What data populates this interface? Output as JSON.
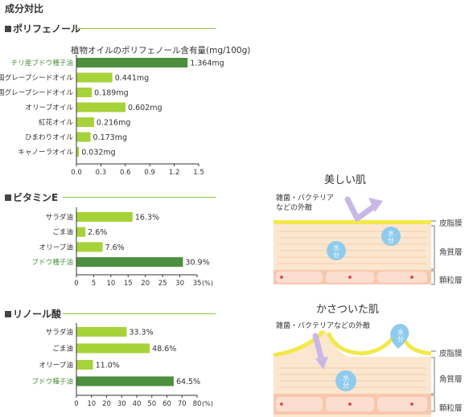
{
  "page_title": "成分対比",
  "sections": [
    {
      "heading": "ポリフェノール",
      "chart_title": "植物オイルのポリフェノール含有量(mg/100g)"
    },
    {
      "heading": "ビタミンE"
    },
    {
      "heading": "リノール酸"
    }
  ],
  "chart_data": [
    {
      "type": "bar",
      "orientation": "horizontal",
      "title": "植物オイルのポリフェノール含有量(mg/100g)",
      "categories": [
        "チリ産ブドウ種子油",
        "A国グレープシードオイル",
        "B国グレープシードオイル",
        "オリーブオイル",
        "紅花オイル",
        "ひまわりオイル",
        "キャノーラオイル"
      ],
      "values": [
        1.364,
        0.441,
        0.189,
        0.602,
        0.216,
        0.173,
        0.032
      ],
      "value_labels": [
        "1.364mg",
        "0.441mg",
        "0.189mg",
        "0.602mg",
        "0.216mg",
        "0.173mg",
        "0.032mg"
      ],
      "highlight_index": 0,
      "xlim": [
        0,
        1.5
      ],
      "ticks": [
        "0.0",
        "0.3",
        "0.6",
        "0.9",
        "1.2",
        "1.5"
      ],
      "tick_values": [
        0,
        0.3,
        0.6,
        0.9,
        1.2,
        1.5
      ],
      "unit": ""
    },
    {
      "type": "bar",
      "orientation": "horizontal",
      "title": "ビタミンE",
      "categories": [
        "サラダ油",
        "ごま油",
        "オリーブ油",
        "ブドウ種子油"
      ],
      "values": [
        16.3,
        2.6,
        7.6,
        30.9
      ],
      "value_labels": [
        "16.3%",
        "2.6%",
        "7.6%",
        "30.9%"
      ],
      "highlight_index": 3,
      "xlim": [
        0,
        35
      ],
      "ticks": [
        "0",
        "5",
        "10",
        "15",
        "20",
        "25",
        "30",
        "35"
      ],
      "tick_values": [
        0,
        5,
        10,
        15,
        20,
        25,
        30,
        35
      ],
      "unit": "(%)"
    },
    {
      "type": "bar",
      "orientation": "horizontal",
      "title": "リノール酸",
      "categories": [
        "サラダ油",
        "ごま油",
        "オリーブ油",
        "ブドウ種子油"
      ],
      "values": [
        33.3,
        48.6,
        11.0,
        64.5
      ],
      "value_labels": [
        "33.3%",
        "48.6%",
        "11.0%",
        "64.5%"
      ],
      "highlight_index": 3,
      "xlim": [
        0,
        80
      ],
      "ticks": [
        "0",
        "10",
        "20",
        "30",
        "40",
        "50",
        "60",
        "70",
        "80"
      ],
      "tick_values": [
        0,
        10,
        20,
        30,
        40,
        50,
        60,
        70,
        80
      ],
      "unit": "(%)"
    }
  ],
  "colors": {
    "bar": "#a7d23a",
    "bar_highlight": "#4d8f3e",
    "accent_line": "#8dc63f",
    "sebum": "#f2e84a",
    "water": "#8fcbec",
    "arrow": "#c9b8e6"
  },
  "diagrams": {
    "healthy": {
      "title": "美しい肌",
      "threat": [
        "雑菌・バクテリア",
        "などの外敵"
      ],
      "water_label": "水分",
      "layers": [
        "皮脂膜",
        "角質層",
        "顆粒層"
      ]
    },
    "dry": {
      "title": "かさついた肌",
      "threat": "雑菌・バクテリアなどの外敵",
      "water_label": "水分",
      "layers": [
        "皮脂膜",
        "角質層",
        "顆粒層"
      ]
    }
  }
}
